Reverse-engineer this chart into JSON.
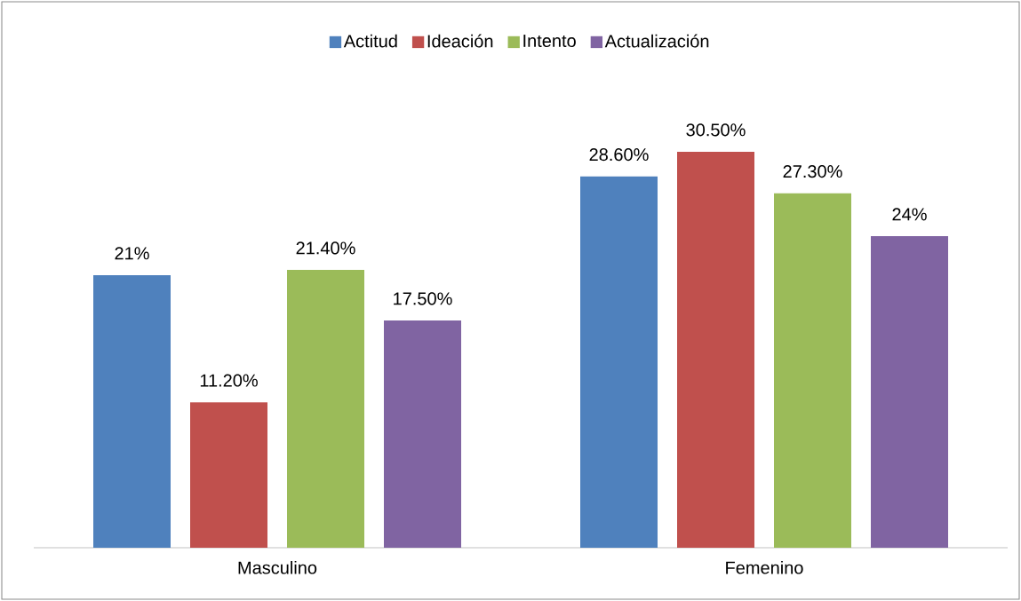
{
  "chart_data": {
    "type": "bar",
    "categories": [
      "Masculino",
      "Femenino"
    ],
    "series": [
      {
        "name": "Actitud",
        "color": "#4f81bd",
        "values": [
          21,
          28.6
        ],
        "value_labels": [
          "21%",
          "28.60%"
        ]
      },
      {
        "name": "Ideación",
        "color": "#c0504d",
        "values": [
          11.2,
          30.5
        ],
        "value_labels": [
          "11.20%",
          "30.50%"
        ]
      },
      {
        "name": "Intento",
        "color": "#9bbb59",
        "values": [
          21.4,
          27.3
        ],
        "value_labels": [
          "21.40%",
          "27.30%"
        ]
      },
      {
        "name": "Actualización",
        "color": "#8064a2",
        "values": [
          17.5,
          24
        ],
        "value_labels": [
          "17.50%",
          "24%"
        ]
      }
    ],
    "legend": "top"
  }
}
